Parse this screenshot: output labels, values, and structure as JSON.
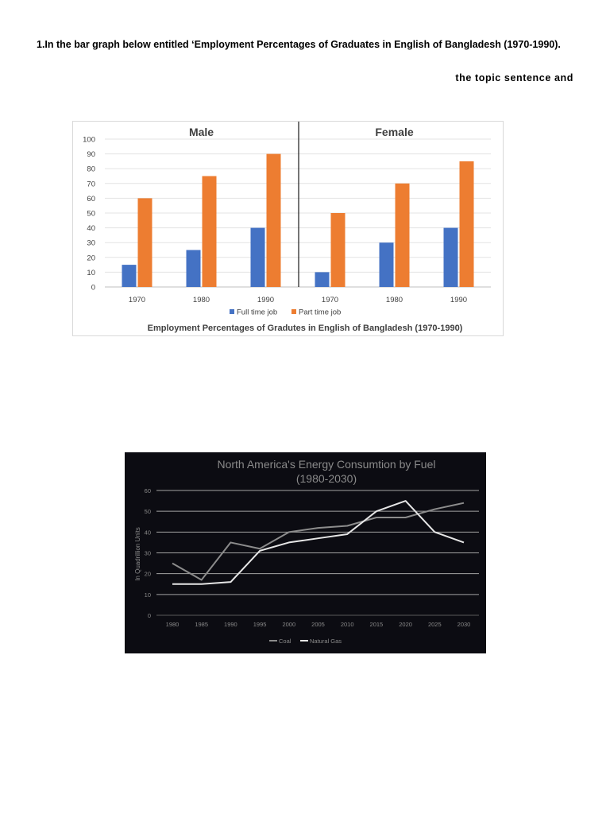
{
  "question": {
    "line1": "1.In the bar graph below entitled ‘Employment Percentages of Graduates in English of Bangladesh (1970-1990).",
    "line2": "the topic sentence and"
  },
  "colors": {
    "full_time": "#4472c4",
    "part_time": "#ed7d31",
    "line_bg": "#0c0c12",
    "coal": "#8c8c8c",
    "natural_gas": "#e6e6e6"
  },
  "chart_data": [
    {
      "type": "bar",
      "title": "Employment Percentages of Gradutes in English of Bangladesh (1970-1990)",
      "panels": [
        {
          "label": "Male",
          "categories": [
            "1970",
            "1980",
            "1990"
          ],
          "series": [
            {
              "name": "Full time job",
              "values": [
                15,
                25,
                40
              ]
            },
            {
              "name": "Part time job",
              "values": [
                60,
                75,
                90
              ]
            }
          ]
        },
        {
          "label": "Female",
          "categories": [
            "1970",
            "1980",
            "1990"
          ],
          "series": [
            {
              "name": "Full time job",
              "values": [
                10,
                30,
                40
              ]
            },
            {
              "name": "Part time job",
              "values": [
                50,
                70,
                85
              ]
            }
          ]
        }
      ],
      "ylim": [
        0,
        100
      ],
      "yticks": [
        0,
        10,
        20,
        30,
        40,
        50,
        60,
        70,
        80,
        90,
        100
      ],
      "legend": [
        "Full time job",
        "Part time job"
      ],
      "legend_position": "bottom",
      "grid": true
    },
    {
      "type": "line",
      "title_line1": "North America's Energy Consumtion by Fuel",
      "title_line2": "(1980-2030)",
      "ylabel": "In Quadrillion Units",
      "x": [
        "1980",
        "1985",
        "1990",
        "1995",
        "2000",
        "2005",
        "2010",
        "2015",
        "2020",
        "2025",
        "2030"
      ],
      "series": [
        {
          "name": "Coal",
          "values": [
            25,
            17,
            35,
            32,
            40,
            42,
            43,
            47,
            47,
            51,
            54
          ]
        },
        {
          "name": "Natural Gas",
          "values": [
            15,
            15,
            16,
            31,
            35,
            37,
            39,
            50,
            55,
            40,
            35
          ]
        }
      ],
      "ylim": [
        0,
        60
      ],
      "yticks": [
        0,
        10,
        20,
        30,
        40,
        50,
        60
      ],
      "legend_position": "bottom",
      "grid": true
    }
  ]
}
